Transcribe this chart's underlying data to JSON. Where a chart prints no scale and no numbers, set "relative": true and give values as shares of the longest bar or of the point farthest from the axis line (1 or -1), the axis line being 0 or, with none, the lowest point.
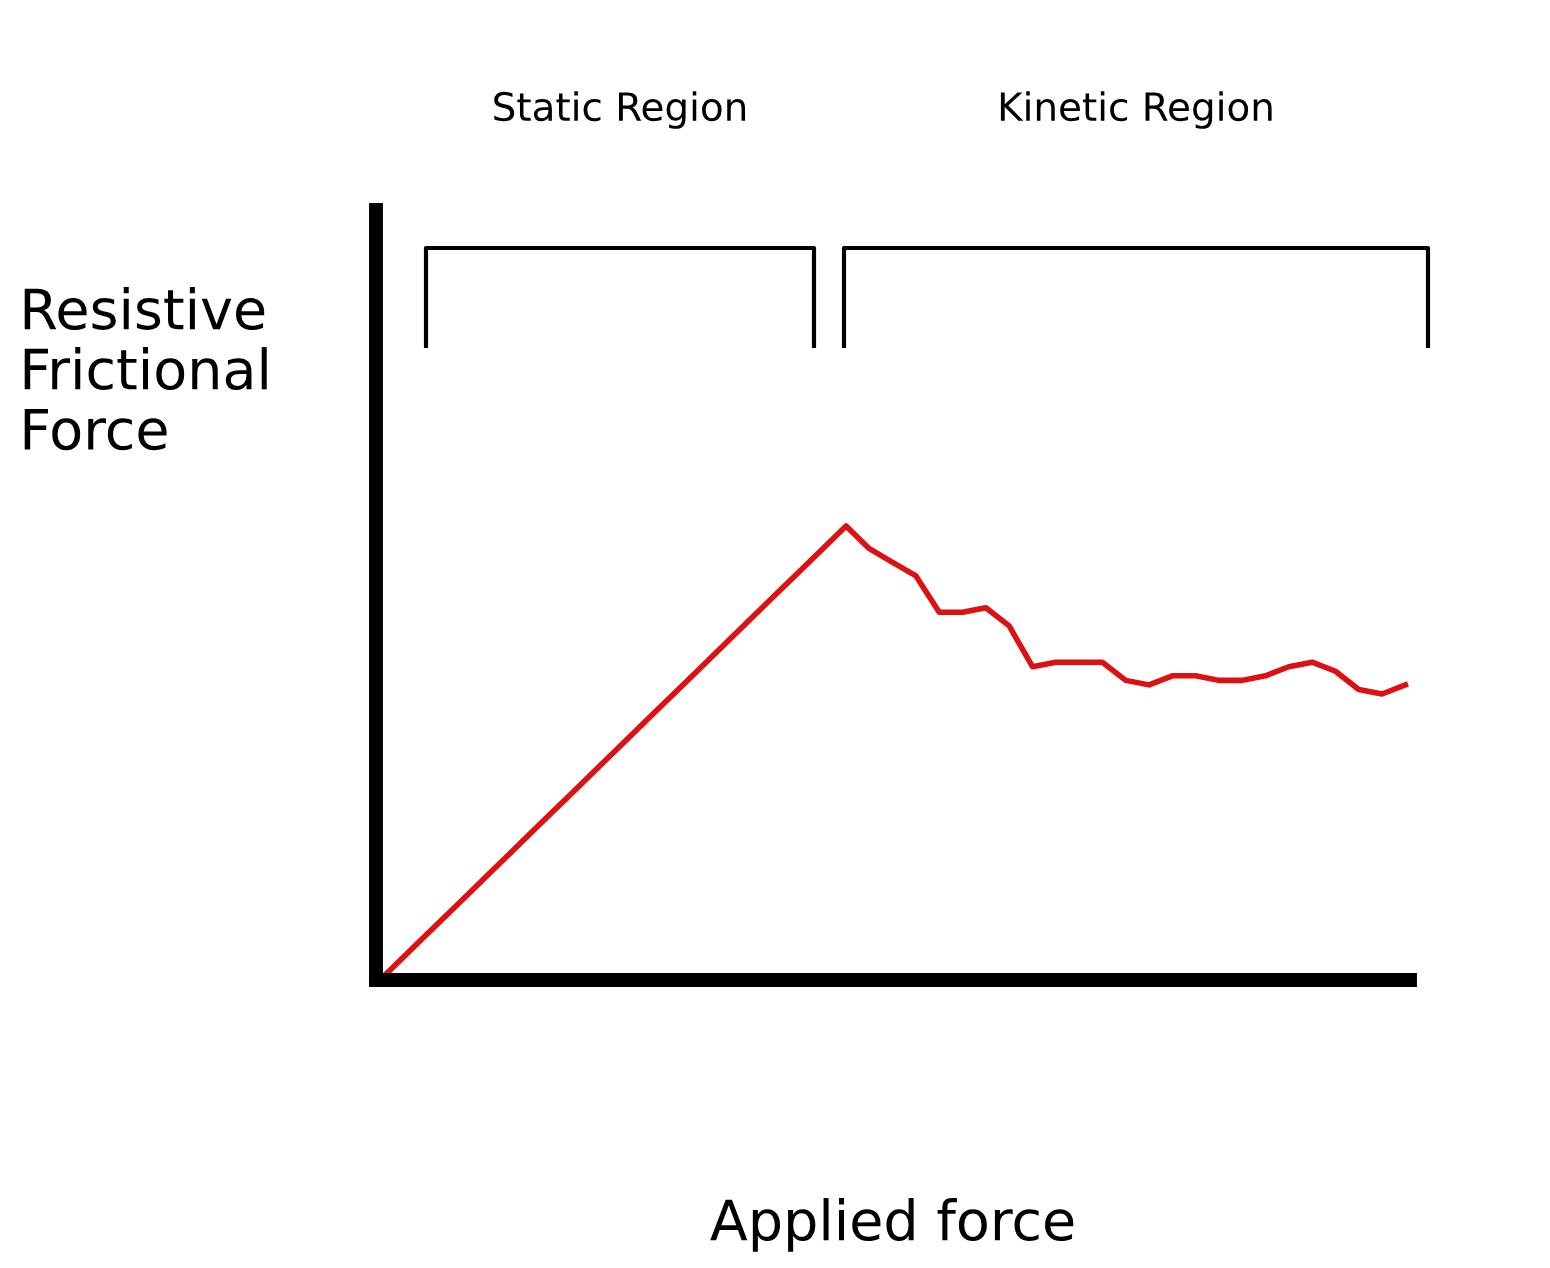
{
  "chart_data": {
    "type": "line",
    "relative": true,
    "xlabel": "Applied force",
    "ylabel": "Resistive\nFrictional\nForce",
    "annotations": [
      "Static Region",
      "Kinetic Region"
    ],
    "categories": [
      null,
      null,
      null,
      null,
      null,
      null,
      null,
      null,
      null,
      null,
      null,
      null,
      null,
      null,
      null,
      null,
      null,
      null,
      null,
      null,
      null,
      null,
      null,
      null,
      null,
      null,
      null,
      null,
      null,
      null,
      null,
      null,
      null,
      null,
      null,
      null,
      null,
      null,
      null,
      null,
      null,
      null,
      null,
      null,
      null
    ],
    "series": [
      {
        "color": "#dd1111",
        "values": [
          0,
          0.05,
          0.1,
          0.15,
          0.2,
          0.25,
          0.3,
          0.35,
          0.4,
          0.45,
          0.5,
          0.55,
          0.6,
          0.65,
          0.7,
          0.75,
          0.8,
          0.85,
          0.9,
          0.95,
          1,
          0.95,
          0.92,
          0.89,
          0.81,
          0.81,
          0.82,
          0.78,
          0.69,
          0.7,
          0.7,
          0.7,
          0.66,
          0.65,
          0.67,
          0.67,
          0.66,
          0.66,
          0.67,
          0.69,
          0.7,
          0.68,
          0.64,
          0.63,
          0.65
        ]
      }
    ],
    "marker": "none",
    "line_style": "solid"
  }
}
